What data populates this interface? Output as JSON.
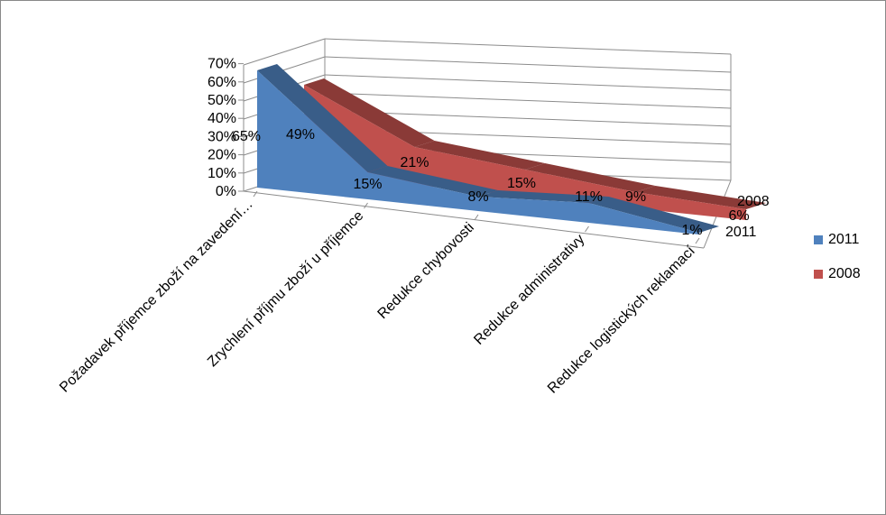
{
  "chart_data": {
    "type": "area",
    "subtype": "3d-area",
    "title": "",
    "xlabel": "",
    "ylabel": "",
    "ylim": [
      0,
      0.7
    ],
    "ytick_step": 0.1,
    "yticks": [
      "0%",
      "10%",
      "20%",
      "30%",
      "40%",
      "50%",
      "60%",
      "70%"
    ],
    "gridlines": true,
    "legend_position": "right",
    "categories": [
      "Požadavek příjemce zboží na zavedení…",
      "Zrychlení příjmu zboží u příjemce",
      "Redukce chybovosti",
      "Redukce administrativy",
      "Redukce logistických reklamací"
    ],
    "series": [
      {
        "name": "2011",
        "color": "#4F81BD",
        "values": [
          0.65,
          0.15,
          0.08,
          0.11,
          0.01
        ],
        "labels": [
          "65%",
          "15%",
          "8%",
          "11%",
          "1%"
        ]
      },
      {
        "name": "2008",
        "color": "#C0504D",
        "values": [
          0.49,
          0.21,
          0.15,
          0.09,
          0.06
        ],
        "labels": [
          "49%",
          "21%",
          "15%",
          "9%",
          "6%"
        ]
      }
    ],
    "depth_labels": [
      "2011",
      "2008"
    ]
  }
}
